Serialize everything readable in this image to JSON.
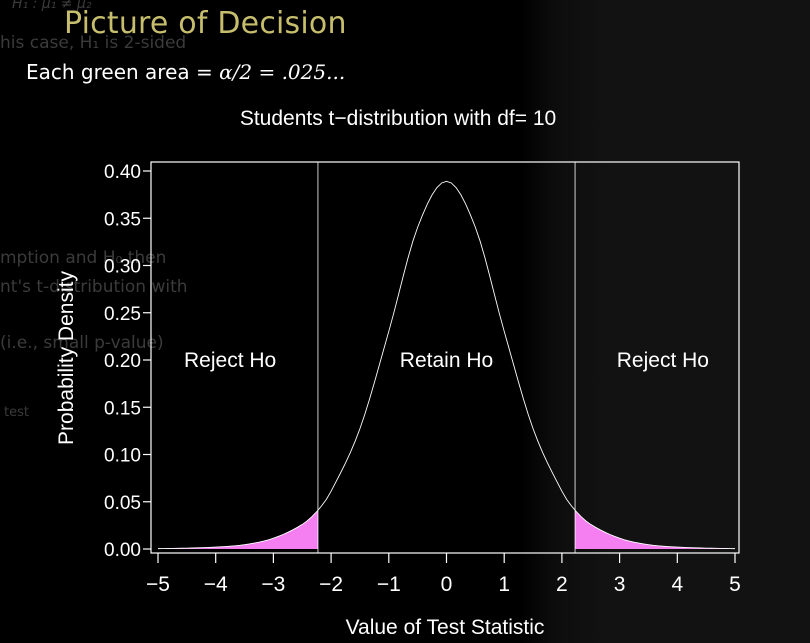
{
  "background_text": [
    "H₁ : μ₁ ≠ μ₂",
    "his case, H₁ is 2-sided",
    "mption and H₀ then",
    "nt's t-distribution with",
    "(i.e., small p-value)",
    "test"
  ],
  "slide": {
    "title": "Picture of Decision",
    "subtitle_prefix": "Each green area = ",
    "subtitle_math": "α/2 = .025...",
    "title_color": "#c6be6c"
  },
  "colors": {
    "background": "#000000",
    "foreground": "#ffffff",
    "reject_fill": "#f57ef0",
    "reject_text": "#f06ef0",
    "title": "#c6be6c"
  },
  "chart_data": {
    "type": "area",
    "title": "Students t−distribution with df= 10",
    "xlabel": "Value of Test Statistic",
    "ylabel": "Probability Density",
    "xlim": [
      -5,
      5
    ],
    "ylim": [
      0,
      0.4
    ],
    "x_ticks": [
      -5,
      -4,
      -3,
      -2,
      -1,
      0,
      1,
      2,
      3,
      4,
      5
    ],
    "x_tick_labels": [
      "−5",
      "−4",
      "−3",
      "−2",
      "−1",
      "0",
      "1",
      "2",
      "3",
      "4",
      "5"
    ],
    "y_ticks": [
      0,
      0.05,
      0.1,
      0.15,
      0.2,
      0.25,
      0.3,
      0.35,
      0.4
    ],
    "y_tick_labels": [
      "0.00",
      "0.05",
      "0.10",
      "0.15",
      "0.20",
      "0.25",
      "0.30",
      "0.35",
      "0.40"
    ],
    "df": 10,
    "critical_values": [
      -2.228,
      2.228
    ],
    "tail_area_each": 0.025,
    "series": [
      {
        "values": [
          {
            "x": -5.0,
            "y": 0.0004
          },
          {
            "x": -4.5,
            "y": 0.00091
          },
          {
            "x": -4.0,
            "y": 0.00203
          },
          {
            "x": -3.5,
            "y": 0.00459
          },
          {
            "x": -3.0,
            "y": 0.0114
          },
          {
            "x": -2.5,
            "y": 0.026
          },
          {
            "x": -2.228,
            "y": 0.04104
          },
          {
            "x": -2.0,
            "y": 0.06114
          },
          {
            "x": -1.5,
            "y": 0.1274
          },
          {
            "x": -1.0,
            "y": 0.23036
          },
          {
            "x": -0.5,
            "y": 0.34046
          },
          {
            "x": 0.0,
            "y": 0.38911
          },
          {
            "x": 0.5,
            "y": 0.34046
          },
          {
            "x": 1.0,
            "y": 0.23036
          },
          {
            "x": 1.5,
            "y": 0.1274
          },
          {
            "x": 2.0,
            "y": 0.06114
          },
          {
            "x": 2.228,
            "y": 0.04104
          },
          {
            "x": 2.5,
            "y": 0.026
          },
          {
            "x": 3.0,
            "y": 0.0114
          },
          {
            "x": 3.5,
            "y": 0.00459
          },
          {
            "x": 4.0,
            "y": 0.00203
          },
          {
            "x": 4.5,
            "y": 0.00091
          },
          {
            "x": 5.0,
            "y": 0.0004
          }
        ]
      }
    ],
    "annotations": [
      {
        "text": "Reject Ho",
        "x": -3.75,
        "y": 0.2,
        "color": "#f06ef0"
      },
      {
        "text": "Retain Ho",
        "x": 0.0,
        "y": 0.2,
        "color": "#ffffff"
      },
      {
        "text": "Reject Ho",
        "x": 3.75,
        "y": 0.2,
        "color": "#f06ef0"
      }
    ],
    "grid": false,
    "legend": "none"
  }
}
